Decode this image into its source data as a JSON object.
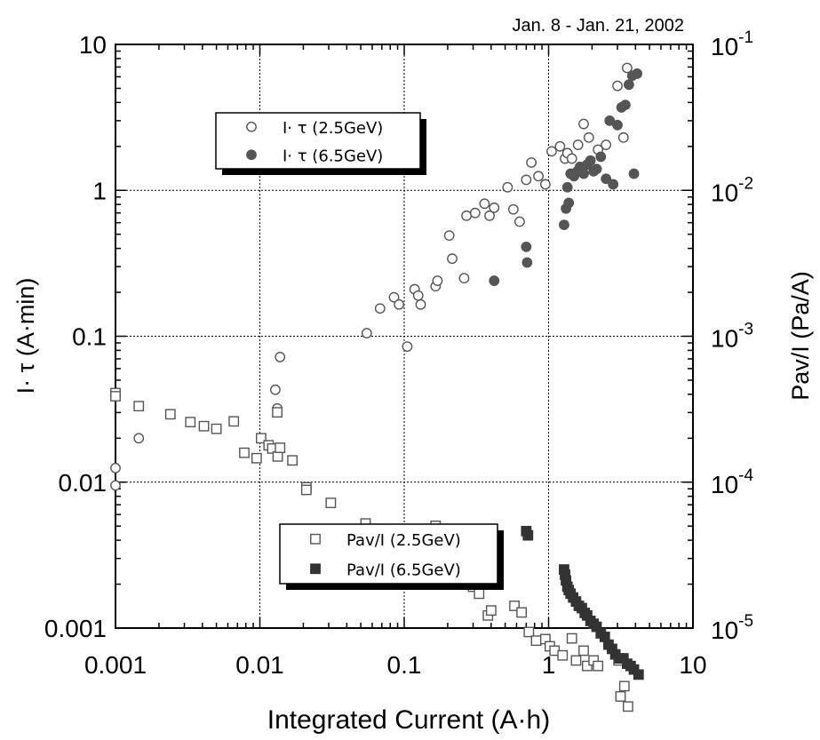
{
  "chart_data": {
    "type": "scatter",
    "annotation": "Jan. 8 - Jan. 21, 2002",
    "xlabel": "Integrated Current (A·h)",
    "ylabel_left": "I· τ (A·min)",
    "ylabel_right": "Pav/I (Pa/A)",
    "x_scale": "log",
    "y_scale": "log",
    "xlim": [
      0.001,
      10
    ],
    "ylim_left": [
      0.001,
      10
    ],
    "ylim_right": [
      1e-05,
      0.1
    ],
    "grid": true,
    "x_ticks": [
      "0.001",
      "0.01",
      "0.1",
      "1",
      "10"
    ],
    "y_ticks_left": [
      "0.001",
      "0.01",
      "0.1",
      "1",
      "10"
    ],
    "y_ticks_right": [
      {
        "base": "10",
        "exp": "-5"
      },
      {
        "base": "10",
        "exp": "-4"
      },
      {
        "base": "10",
        "exp": "-3"
      },
      {
        "base": "10",
        "exp": "-2"
      },
      {
        "base": "10",
        "exp": "-1"
      }
    ],
    "legends": [
      {
        "placement": "upper-left",
        "entries": [
          {
            "label": "I· τ (2.5GeV)",
            "marker": "open-circle"
          },
          {
            "label": "I· τ (6.5GeV)",
            "marker": "filled-circle"
          }
        ]
      },
      {
        "placement": "lower-center",
        "entries": [
          {
            "label": "Pav/I (2.5GeV)",
            "marker": "open-square"
          },
          {
            "label": "Pav/I (6.5GeV)",
            "marker": "filled-square"
          }
        ]
      }
    ],
    "series": [
      {
        "name": "I· τ (2.5GeV)",
        "axis": "left",
        "marker": "open-circle",
        "color": "#555555",
        "x": [
          0.001,
          0.001,
          0.00145,
          0.0128,
          0.0132,
          0.0138,
          0.055,
          0.068,
          0.085,
          0.092,
          0.105,
          0.118,
          0.125,
          0.13,
          0.165,
          0.17,
          0.205,
          0.215,
          0.26,
          0.27,
          0.31,
          0.36,
          0.39,
          0.42,
          0.52,
          0.57,
          0.63,
          0.7,
          0.76,
          0.85,
          0.95,
          1.05,
          1.2,
          1.3,
          1.35,
          1.45,
          1.6,
          1.75,
          1.9,
          2.2,
          2.5,
          3.0,
          3.5,
          3.3
        ],
        "y": [
          0.0095,
          0.0125,
          0.02,
          0.043,
          0.032,
          0.072,
          0.105,
          0.155,
          0.185,
          0.165,
          0.085,
          0.21,
          0.19,
          0.165,
          0.22,
          0.24,
          0.49,
          0.34,
          0.25,
          0.67,
          0.7,
          0.81,
          0.67,
          0.76,
          1.05,
          0.74,
          0.61,
          1.18,
          1.55,
          1.25,
          1.1,
          1.85,
          2.0,
          1.65,
          1.8,
          1.65,
          2.05,
          2.85,
          2.3,
          1.9,
          2.05,
          5.2,
          6.9,
          2.3
        ]
      },
      {
        "name": "I· τ (6.5GeV)",
        "axis": "left",
        "marker": "filled-circle",
        "color": "#555555",
        "x": [
          0.42,
          0.7,
          0.71,
          1.28,
          1.32,
          1.38,
          1.42,
          1.35,
          1.5,
          1.58,
          1.65,
          1.75,
          1.85,
          1.95,
          2.05,
          2.15,
          2.3,
          2.5,
          2.65,
          2.8,
          3.0,
          3.2,
          3.4,
          3.6,
          3.8,
          4.1,
          3.9
        ],
        "y": [
          0.24,
          0.41,
          0.32,
          0.58,
          0.75,
          0.82,
          1.3,
          1.05,
          1.25,
          1.35,
          1.45,
          1.3,
          1.5,
          1.6,
          1.35,
          1.4,
          1.7,
          1.2,
          3.0,
          1.1,
          2.8,
          3.7,
          3.85,
          5.3,
          6.1,
          6.3,
          1.3
        ]
      },
      {
        "name": "Pav/I (2.5GeV)",
        "axis": "right",
        "marker": "open-square",
        "color": "#555555",
        "x": [
          0.001,
          0.001,
          0.00145,
          0.0024,
          0.0033,
          0.0041,
          0.005,
          0.0066,
          0.0078,
          0.0095,
          0.0102,
          0.0115,
          0.0122,
          0.0132,
          0.0133,
          0.0138,
          0.0168,
          0.021,
          0.021,
          0.031,
          0.054,
          0.068,
          0.085,
          0.092,
          0.105,
          0.12,
          0.125,
          0.13,
          0.135,
          0.165,
          0.165,
          0.17,
          0.2,
          0.215,
          0.225,
          0.26,
          0.3,
          0.33,
          0.38,
          0.4,
          0.58,
          0.65,
          0.73,
          0.82,
          0.95,
          1.02,
          1.1,
          1.25,
          1.45,
          1.55,
          1.75,
          1.85,
          2.05,
          2.2,
          3.15,
          3.35,
          3.55,
          3.05
        ],
        "y": [
          0.000408,
          0.000388,
          0.000332,
          0.000292,
          0.000258,
          0.000242,
          0.000232,
          0.000261,
          0.000159,
          0.000146,
          0.0002,
          0.000179,
          0.00017,
          0.000301,
          0.00015,
          0.000172,
          0.000141,
          9.22e-05,
          8.85e-05,
          7.21e-05,
          5.21e-05,
          4.52e-05,
          4.02e-05,
          3.72e-05,
          3.52e-05,
          3.02e-05,
          2.72e-05,
          2.52e-05,
          3.52e-05,
          5.02e-05,
          4.02e-05,
          2.92e-05,
          2.32e-05,
          2.12e-05,
          2.32e-05,
          2.12e-05,
          1.92e-05,
          1.72e-05,
          1.22e-05,
          1.32e-05,
          1.42e-05,
          1.28e-05,
          9.4e-06,
          8.2e-06,
          8.4e-06,
          7.5e-06,
          7e-06,
          6.5e-06,
          8.5e-06,
          6e-06,
          7e-06,
          5.5e-06,
          6e-06,
          5.5e-06,
          3.4e-06,
          4e-06,
          2.9e-06,
          6e-06
        ]
      },
      {
        "name": "Pav/I (6.5GeV)",
        "axis": "right",
        "marker": "filled-square",
        "color": "#333333",
        "x": [
          0.7,
          0.72,
          1.28,
          1.3,
          1.32,
          1.35,
          1.38,
          1.42,
          1.48,
          1.55,
          1.62,
          1.7,
          1.78,
          1.85,
          1.95,
          2.05,
          2.15,
          2.3,
          2.45,
          2.6,
          2.75,
          2.9,
          3.1,
          3.3,
          3.5,
          3.7,
          3.9,
          4.2
        ],
        "y": [
          4.62e-05,
          4.32e-05,
          2.52e-05,
          2.32e-05,
          2.12e-05,
          1.92e-05,
          1.82e-05,
          1.72e-05,
          1.62e-05,
          1.52e-05,
          1.42e-05,
          1.37e-05,
          1.27e-05,
          1.22e-05,
          1.12e-05,
          1.07e-05,
          1.02e-05,
          9.2e-06,
          8.7e-06,
          7.7e-06,
          7.2e-06,
          6.6e-06,
          6.2e-06,
          6.2e-06,
          5.7e-06,
          5.5e-06,
          5.2e-06,
          4.8e-06
        ]
      }
    ]
  }
}
